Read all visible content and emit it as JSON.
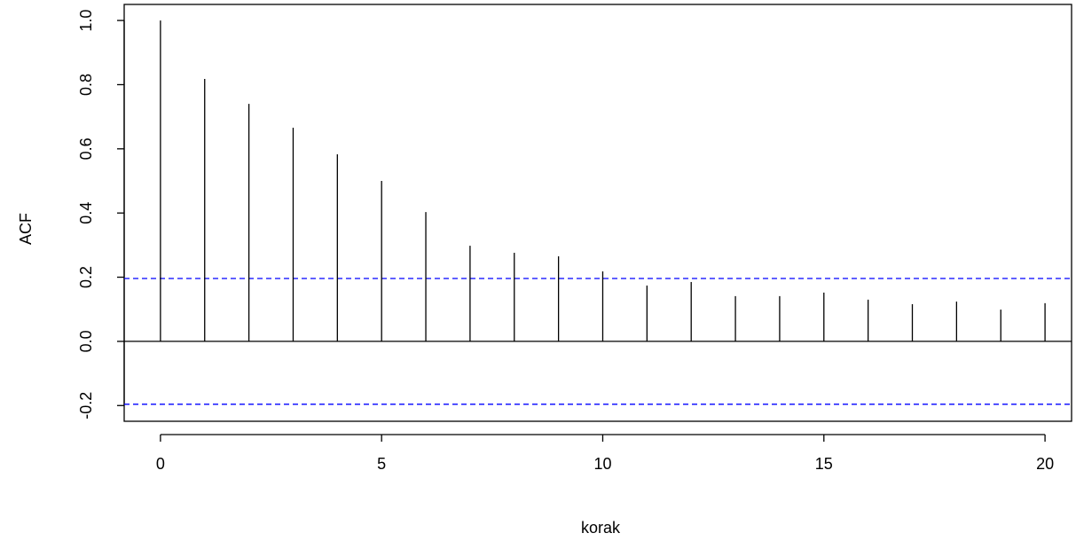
{
  "chart_data": {
    "type": "acf",
    "x_label": "korak",
    "y_label": "ACF",
    "x": [
      0,
      1,
      2,
      3,
      4,
      5,
      6,
      7,
      8,
      9,
      10,
      11,
      12,
      13,
      14,
      15,
      16,
      17,
      18,
      19,
      20
    ],
    "values": [
      1.0,
      0.818,
      0.74,
      0.666,
      0.583,
      0.5,
      0.403,
      0.298,
      0.276,
      0.265,
      0.218,
      0.174,
      0.185,
      0.141,
      0.141,
      0.152,
      0.13,
      0.116,
      0.124,
      0.099,
      0.119
    ],
    "color": "#000000",
    "ci": 0.196,
    "ci_color": "#0000ff",
    "xlim": [
      -0.82,
      20.6
    ],
    "ylim": [
      -0.249,
      1.05
    ],
    "xticks": [
      0,
      5,
      10,
      15,
      20
    ],
    "yticks": [
      {
        "value": -0.2,
        "label": "-0.2"
      },
      {
        "value": 0,
        "label": "0.0"
      },
      {
        "value": 0.2,
        "label": "0.2"
      },
      {
        "value": 0.4,
        "label": "0.4"
      },
      {
        "value": 0.6,
        "label": "0.6"
      },
      {
        "value": 0.8,
        "label": "0.8"
      },
      {
        "value": 1,
        "label": "1.0"
      }
    ]
  }
}
